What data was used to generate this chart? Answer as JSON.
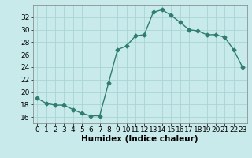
{
  "x": [
    0,
    1,
    2,
    3,
    4,
    5,
    6,
    7,
    8,
    9,
    10,
    11,
    12,
    13,
    14,
    15,
    16,
    17,
    18,
    19,
    20,
    21,
    22,
    23
  ],
  "y": [
    19.0,
    18.2,
    17.9,
    17.9,
    17.2,
    16.6,
    16.2,
    16.2,
    21.5,
    26.8,
    27.4,
    29.0,
    29.2,
    32.8,
    33.2,
    32.3,
    31.2,
    30.0,
    29.8,
    29.2,
    29.2,
    28.8,
    26.8,
    24.0
  ],
  "line_color": "#2e7d6e",
  "marker": "D",
  "marker_size": 2.5,
  "bg_color": "#c8eaea",
  "grid_color": "#aad4d4",
  "xlabel": "Humidex (Indice chaleur)",
  "xlim": [
    -0.5,
    23.5
  ],
  "ylim": [
    15,
    34
  ],
  "yticks": [
    16,
    18,
    20,
    22,
    24,
    26,
    28,
    30,
    32
  ],
  "xticks": [
    0,
    1,
    2,
    3,
    4,
    5,
    6,
    7,
    8,
    9,
    10,
    11,
    12,
    13,
    14,
    15,
    16,
    17,
    18,
    19,
    20,
    21,
    22,
    23
  ],
  "font_size": 6.5,
  "line_width": 1.0
}
